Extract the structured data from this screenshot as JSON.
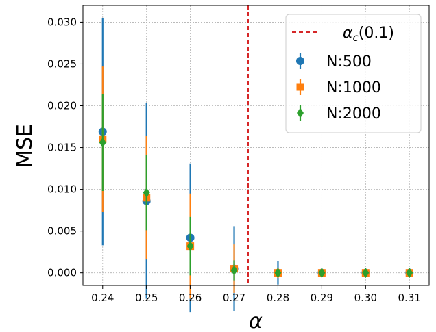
{
  "chart_data": {
    "type": "scatter",
    "xlabel": "α",
    "ylabel": "MSE",
    "xlim": [
      0.2355,
      0.3145
    ],
    "ylim": [
      -0.0015,
      0.032
    ],
    "x_ticks": [
      0.24,
      0.25,
      0.26,
      0.27,
      0.28,
      0.29,
      0.3,
      0.31
    ],
    "x_tick_labels": [
      "0.24",
      "0.25",
      "0.26",
      "0.27",
      "0.28",
      "0.29",
      "0.30",
      "0.31"
    ],
    "y_ticks": [
      0.0,
      0.005,
      0.01,
      0.015,
      0.02,
      0.025,
      0.03
    ],
    "y_tick_labels": [
      "0.000",
      "0.005",
      "0.010",
      "0.015",
      "0.020",
      "0.025",
      "0.030"
    ],
    "grid": true,
    "legend_position": "top-right",
    "vline": {
      "x": 0.2732,
      "label_main": "α",
      "label_sub": "c",
      "label_rest": "(0.1)",
      "color": "#d62728"
    },
    "series": [
      {
        "name": "N:500",
        "color": "#1f77b4",
        "marker": "circle",
        "x": [
          0.24,
          0.25,
          0.26,
          0.27,
          0.28,
          0.29,
          0.3,
          0.31
        ],
        "y": [
          0.0169,
          0.0086,
          0.0042,
          0.0005,
          0.0,
          0.0,
          0.0,
          0.0
        ],
        "err": [
          0.0136,
          0.0117,
          0.0089,
          0.0051,
          0.0014,
          0.0003,
          0.0002,
          0.0002
        ]
      },
      {
        "name": "N:1000",
        "color": "#ff7f0e",
        "marker": "square",
        "x": [
          0.24,
          0.25,
          0.26,
          0.27,
          0.28,
          0.29,
          0.3,
          0.31
        ],
        "y": [
          0.016,
          0.009,
          0.0032,
          0.0005,
          0.0,
          0.0,
          0.0,
          0.0
        ],
        "err": [
          0.0087,
          0.0074,
          0.0063,
          0.0029,
          0.0006,
          0.0002,
          0.0002,
          0.0002
        ]
      },
      {
        "name": "N:2000",
        "color": "#2ca02c",
        "marker": "diamond",
        "x": [
          0.24,
          0.25,
          0.26,
          0.27,
          0.28,
          0.29,
          0.3,
          0.31
        ],
        "y": [
          0.0156,
          0.0096,
          0.0032,
          0.0003,
          0.0,
          0.0,
          0.0,
          0.0
        ],
        "err": [
          0.0058,
          0.0045,
          0.0035,
          0.0012,
          0.0003,
          0.0001,
          0.0001,
          0.0001
        ]
      }
    ]
  }
}
